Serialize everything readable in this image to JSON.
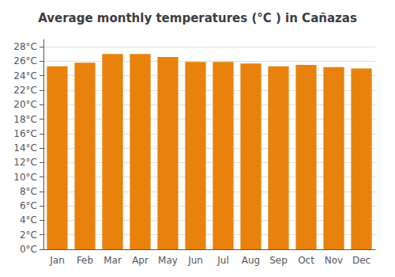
{
  "chart_data": {
    "type": "bar",
    "title": "Average monthly temperatures (°C ) in Cañazas",
    "categories": [
      "Jan",
      "Feb",
      "Mar",
      "Apr",
      "May",
      "Jun",
      "Jul",
      "Aug",
      "Sep",
      "Oct",
      "Nov",
      "Dec"
    ],
    "values": [
      25.3,
      25.8,
      27.0,
      27.0,
      26.6,
      25.9,
      25.9,
      25.7,
      25.3,
      25.5,
      25.2,
      25.0
    ],
    "color": "#E8820C",
    "ylim": [
      0,
      29
    ],
    "yticks": [
      {
        "value": 0,
        "label": "0°C"
      },
      {
        "value": 2,
        "label": "2°C"
      },
      {
        "value": 4,
        "label": "4°C"
      },
      {
        "value": 6,
        "label": "6°C"
      },
      {
        "value": 8,
        "label": "8°C"
      },
      {
        "value": 10,
        "label": "10°C"
      },
      {
        "value": 12,
        "label": "12°C"
      },
      {
        "value": 14,
        "label": "14°C"
      },
      {
        "value": 16,
        "label": "16°C"
      },
      {
        "value": 18,
        "label": "18°C"
      },
      {
        "value": 20,
        "label": "20°C"
      },
      {
        "value": 22,
        "label": "22°C"
      },
      {
        "value": 24,
        "label": "24°C"
      },
      {
        "value": 26,
        "label": "26°C"
      },
      {
        "value": 28,
        "label": "28°C"
      }
    ],
    "grid": true
  }
}
